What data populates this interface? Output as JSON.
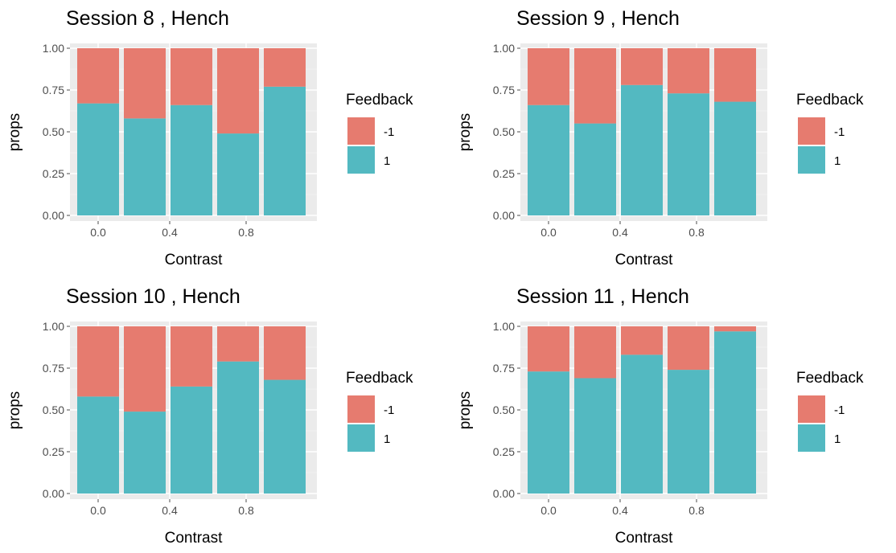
{
  "colors": {
    "neg": "#E67B6F",
    "pos": "#53B9C1",
    "panel": "#EBEBEB",
    "grid_major": "#FFFFFF",
    "grid_minor": "#F5F5F5",
    "tick": "#4D4D4D"
  },
  "chart_data": [
    {
      "type": "bar",
      "stacked": "fill",
      "title": "Session  8 , Hench",
      "xlabel": "Contrast",
      "ylabel": "props",
      "x_tick_labels": [
        "0.0",
        "0.4",
        "0.8"
      ],
      "y_tick_labels": [
        "0.00",
        "0.25",
        "0.50",
        "0.75",
        "1.00"
      ],
      "ylim": [
        0,
        1
      ],
      "n_bars": 5,
      "legend": {
        "title": "Feedback",
        "position": "right",
        "entries": [
          "-1",
          "1"
        ]
      },
      "series": [
        {
          "name": "1",
          "values": [
            0.67,
            0.58,
            0.66,
            0.49,
            0.77
          ]
        },
        {
          "name": "-1",
          "values": [
            0.33,
            0.42,
            0.34,
            0.51,
            0.23
          ]
        }
      ]
    },
    {
      "type": "bar",
      "stacked": "fill",
      "title": "Session  9 , Hench",
      "xlabel": "Contrast",
      "ylabel": "props",
      "x_tick_labels": [
        "0.0",
        "0.4",
        "0.8"
      ],
      "y_tick_labels": [
        "0.00",
        "0.25",
        "0.50",
        "0.75",
        "1.00"
      ],
      "ylim": [
        0,
        1
      ],
      "n_bars": 5,
      "legend": {
        "title": "Feedback",
        "position": "right",
        "entries": [
          "-1",
          "1"
        ]
      },
      "series": [
        {
          "name": "1",
          "values": [
            0.66,
            0.55,
            0.78,
            0.73,
            0.68
          ]
        },
        {
          "name": "-1",
          "values": [
            0.34,
            0.45,
            0.22,
            0.27,
            0.32
          ]
        }
      ]
    },
    {
      "type": "bar",
      "stacked": "fill",
      "title": "Session  10 , Hench",
      "xlabel": "Contrast",
      "ylabel": "props",
      "x_tick_labels": [
        "0.0",
        "0.4",
        "0.8"
      ],
      "y_tick_labels": [
        "0.00",
        "0.25",
        "0.50",
        "0.75",
        "1.00"
      ],
      "ylim": [
        0,
        1
      ],
      "n_bars": 5,
      "legend": {
        "title": "Feedback",
        "position": "right",
        "entries": [
          "-1",
          "1"
        ]
      },
      "series": [
        {
          "name": "1",
          "values": [
            0.58,
            0.49,
            0.64,
            0.79,
            0.68
          ]
        },
        {
          "name": "-1",
          "values": [
            0.42,
            0.51,
            0.36,
            0.21,
            0.32
          ]
        }
      ]
    },
    {
      "type": "bar",
      "stacked": "fill",
      "title": "Session  11 , Hench",
      "xlabel": "Contrast",
      "ylabel": "props",
      "x_tick_labels": [
        "0.0",
        "0.4",
        "0.8"
      ],
      "y_tick_labels": [
        "0.00",
        "0.25",
        "0.50",
        "0.75",
        "1.00"
      ],
      "ylim": [
        0,
        1
      ],
      "n_bars": 5,
      "legend": {
        "title": "Feedback",
        "position": "right",
        "entries": [
          "-1",
          "1"
        ]
      },
      "series": [
        {
          "name": "1",
          "values": [
            0.73,
            0.69,
            0.83,
            0.74,
            0.97
          ]
        },
        {
          "name": "-1",
          "values": [
            0.27,
            0.31,
            0.17,
            0.26,
            0.03
          ]
        }
      ]
    }
  ]
}
